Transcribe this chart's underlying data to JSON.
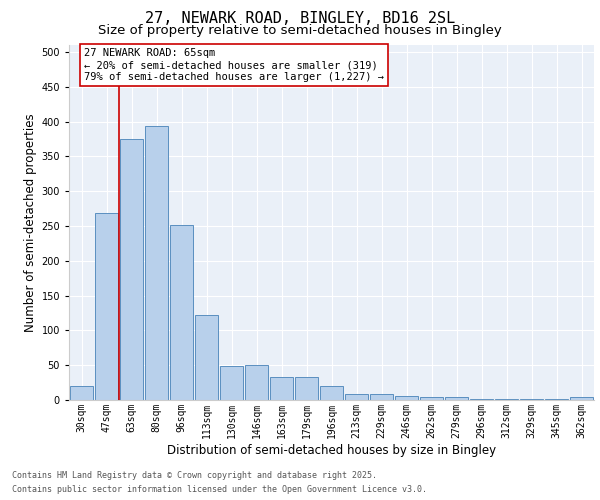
{
  "title_line1": "27, NEWARK ROAD, BINGLEY, BD16 2SL",
  "title_line2": "Size of property relative to semi-detached houses in Bingley",
  "xlabel": "Distribution of semi-detached houses by size in Bingley",
  "ylabel": "Number of semi-detached properties",
  "categories": [
    "30sqm",
    "47sqm",
    "63sqm",
    "80sqm",
    "96sqm",
    "113sqm",
    "130sqm",
    "146sqm",
    "163sqm",
    "179sqm",
    "196sqm",
    "213sqm",
    "229sqm",
    "246sqm",
    "262sqm",
    "279sqm",
    "296sqm",
    "312sqm",
    "329sqm",
    "345sqm",
    "362sqm"
  ],
  "values": [
    20,
    268,
    375,
    393,
    252,
    122,
    49,
    50,
    33,
    33,
    20,
    9,
    9,
    6,
    4,
    4,
    2,
    2,
    1,
    1,
    5
  ],
  "bar_color": "#b8d0eb",
  "bar_edge_color": "#5a8fc0",
  "vline_x": 1.5,
  "vline_color": "#cc0000",
  "annotation_text": "27 NEWARK ROAD: 65sqm\n← 20% of semi-detached houses are smaller (319)\n79% of semi-detached houses are larger (1,227) →",
  "annotation_box_color": "#ffffff",
  "annotation_box_edge": "#cc0000",
  "ylim": [
    0,
    510
  ],
  "yticks": [
    0,
    50,
    100,
    150,
    200,
    250,
    300,
    350,
    400,
    450,
    500
  ],
  "background_color": "#eaf0f8",
  "grid_color": "#ffffff",
  "footer_line1": "Contains HM Land Registry data © Crown copyright and database right 2025.",
  "footer_line2": "Contains public sector information licensed under the Open Government Licence v3.0.",
  "title_fontsize": 11,
  "subtitle_fontsize": 9.5,
  "axis_label_fontsize": 8.5,
  "tick_fontsize": 7,
  "annotation_fontsize": 7.5,
  "footer_fontsize": 6
}
